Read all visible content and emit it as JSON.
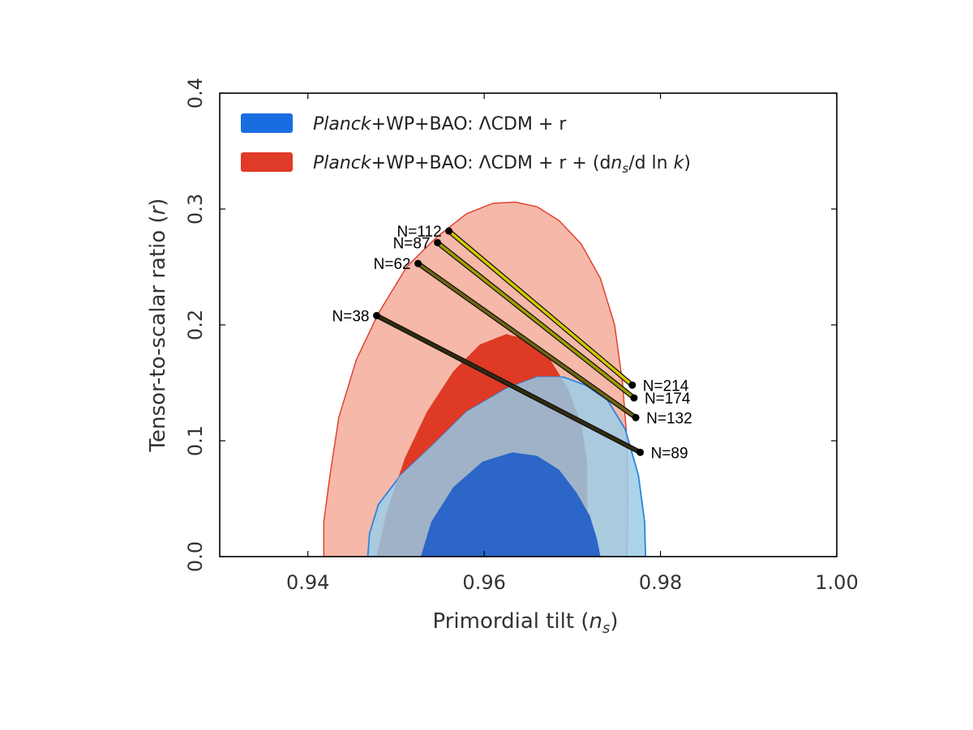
{
  "chart_data": {
    "type": "scatter",
    "title": "",
    "xlabel": "Primordial tilt (n_s)",
    "xlabel_prefix": "Primordial tilt (",
    "xlabel_var": "n",
    "xlabel_sub": "s",
    "xlabel_suffix": ")",
    "ylabel": "Tensor-to-scalar ratio (r)",
    "ylabel_prefix": "Tensor-to-scalar ratio (",
    "ylabel_var": "r",
    "ylabel_suffix": ")",
    "xlim": [
      0.93,
      1.0
    ],
    "ylim": [
      0.0,
      0.4
    ],
    "xticks": [
      0.94,
      0.96,
      0.98,
      1.0
    ],
    "xtick_labels": [
      "0.94",
      "0.96",
      "0.98",
      "1.00"
    ],
    "yticks": [
      0.0,
      0.1,
      0.2,
      0.3,
      0.4
    ],
    "ytick_labels": [
      "0.0",
      "0.1",
      "0.2",
      "0.3",
      "0.4"
    ],
    "grid": false,
    "legend_position": "top-left",
    "legend": [
      {
        "name": "blue",
        "color": "#1a6de0",
        "italic": "Planck",
        "text": "+WP+BAO: ΛCDM + r",
        "extra_prefix": "",
        "extra_d1": "",
        "extra_var1": "",
        "extra_sub": "",
        "extra_mid": "",
        "extra_var2": "",
        "extra_suffix": ""
      },
      {
        "name": "red",
        "color": "#e03a28",
        "italic": "Planck",
        "text": "+WP+BAO: ΛCDM + r + ",
        "extra_prefix": "(",
        "extra_d1": "d",
        "extra_var1": "n",
        "extra_sub": "s",
        "extra_mid": "/d ln ",
        "extra_var2": "k",
        "extra_suffix": ")"
      }
    ],
    "contours": [
      {
        "name": "red-68",
        "level": "68%",
        "fill": "#f6b8a8",
        "stroke": "#e03a28",
        "points": [
          [
            0.9418,
            0.0
          ],
          [
            0.9418,
            0.03
          ],
          [
            0.9425,
            0.07
          ],
          [
            0.9435,
            0.12
          ],
          [
            0.9455,
            0.17
          ],
          [
            0.948,
            0.21
          ],
          [
            0.9512,
            0.25
          ],
          [
            0.9545,
            0.275
          ],
          [
            0.958,
            0.296
          ],
          [
            0.961,
            0.305
          ],
          [
            0.9635,
            0.306
          ],
          [
            0.966,
            0.302
          ],
          [
            0.9685,
            0.29
          ],
          [
            0.971,
            0.27
          ],
          [
            0.9732,
            0.24
          ],
          [
            0.9748,
            0.2
          ],
          [
            0.9757,
            0.15
          ],
          [
            0.9762,
            0.1
          ],
          [
            0.9763,
            0.05
          ],
          [
            0.9762,
            0.0
          ]
        ]
      },
      {
        "name": "red-95",
        "level": "95%",
        "fill": "#de3a25",
        "stroke": "#de3a25",
        "points": [
          [
            0.9478,
            0.0
          ],
          [
            0.949,
            0.04
          ],
          [
            0.951,
            0.085
          ],
          [
            0.9535,
            0.125
          ],
          [
            0.9565,
            0.16
          ],
          [
            0.9595,
            0.183
          ],
          [
            0.9625,
            0.192
          ],
          [
            0.9652,
            0.187
          ],
          [
            0.9675,
            0.17
          ],
          [
            0.9695,
            0.145
          ],
          [
            0.971,
            0.115
          ],
          [
            0.9717,
            0.08
          ],
          [
            0.9717,
            0.04
          ],
          [
            0.9713,
            0.0
          ]
        ]
      },
      {
        "name": "blue-68",
        "level": "68%",
        "fill": "#9ccde8",
        "stroke": "#2a85e0",
        "points": [
          [
            0.9468,
            0.0
          ],
          [
            0.947,
            0.02
          ],
          [
            0.948,
            0.045
          ],
          [
            0.9505,
            0.07
          ],
          [
            0.954,
            0.095
          ],
          [
            0.958,
            0.125
          ],
          [
            0.9625,
            0.145
          ],
          [
            0.966,
            0.155
          ],
          [
            0.969,
            0.155
          ],
          [
            0.9715,
            0.148
          ],
          [
            0.974,
            0.135
          ],
          [
            0.976,
            0.11
          ],
          [
            0.9775,
            0.07
          ],
          [
            0.9782,
            0.03
          ],
          [
            0.9783,
            0.0
          ]
        ]
      },
      {
        "name": "blue-95",
        "level": "95%",
        "fill": "#2b66c8",
        "stroke": "#2b66c8",
        "points": [
          [
            0.9528,
            0.0
          ],
          [
            0.954,
            0.03
          ],
          [
            0.9565,
            0.06
          ],
          [
            0.9598,
            0.082
          ],
          [
            0.9632,
            0.09
          ],
          [
            0.966,
            0.087
          ],
          [
            0.9685,
            0.075
          ],
          [
            0.9705,
            0.055
          ],
          [
            0.972,
            0.035
          ],
          [
            0.9728,
            0.015
          ],
          [
            0.9732,
            0.0
          ]
        ]
      }
    ],
    "overlap_fill": "#9fb2c8",
    "series": [
      {
        "name": "N=112 to N=214",
        "color": "#d4c800",
        "start": {
          "x": 0.956,
          "y": 0.281,
          "label": "N=112"
        },
        "end": {
          "x": 0.9768,
          "y": 0.148,
          "label": "N=214"
        }
      },
      {
        "name": "N=87 to N=174",
        "color": "#a09b00",
        "start": {
          "x": 0.9547,
          "y": 0.271,
          "label": "N=87"
        },
        "end": {
          "x": 0.977,
          "y": 0.137,
          "label": "N=174"
        }
      },
      {
        "name": "N=62 to N=132",
        "color": "#6e6410",
        "start": {
          "x": 0.9525,
          "y": 0.253,
          "label": "N=62"
        },
        "end": {
          "x": 0.9772,
          "y": 0.12,
          "label": "N=132"
        }
      },
      {
        "name": "N=38 to N=89",
        "color": "#332a10",
        "start": {
          "x": 0.9478,
          "y": 0.208,
          "label": "N=38"
        },
        "end": {
          "x": 0.9777,
          "y": 0.09,
          "label": "N=89"
        }
      }
    ]
  }
}
